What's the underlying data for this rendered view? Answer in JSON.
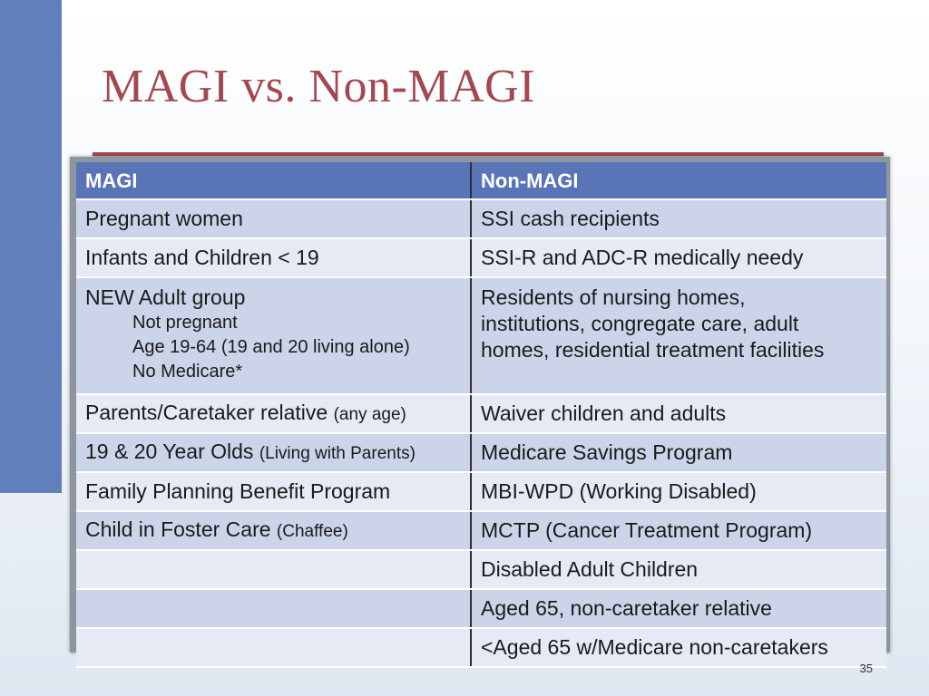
{
  "slide": {
    "title": "MAGI vs. Non-MAGI",
    "page_number": "35"
  },
  "table": {
    "headers": [
      "MAGI",
      "Non-MAGI"
    ],
    "rows": [
      {
        "magi": "Pregnant women",
        "non_magi": "SSI  cash recipients"
      },
      {
        "magi": "Infants and Children < 19",
        "non_magi": "SSI-R and ADC-R medically needy"
      },
      {
        "magi": "NEW Adult group",
        "magi_sub": [
          "Not pregnant",
          "Age 19-64 (19 and 20 living alone)",
          "No Medicare*"
        ],
        "non_magi_lines": [
          "Residents of nursing homes,",
          "institutions, congregate care, adult",
          "homes, residential treatment facilities"
        ]
      },
      {
        "magi": "Parents/Caretaker relative",
        "magi_note": "(any age)",
        "non_magi": "Waiver children and adults"
      },
      {
        "magi": "19 & 20 Year Olds",
        "magi_note": "(Living with Parents)",
        "non_magi": "Medicare Savings Program"
      },
      {
        "magi": "Family Planning Benefit Program",
        "non_magi": "MBI-WPD (Working Disabled)"
      },
      {
        "magi": "Child in Foster Care",
        "magi_note": "(Chaffee)",
        "non_magi": "MCTP (Cancer Treatment Program)"
      },
      {
        "magi": "",
        "non_magi": "Disabled Adult Children"
      },
      {
        "magi": "",
        "non_magi": "Aged 65, non-caretaker relative"
      },
      {
        "magi": "",
        "non_magi": "<Aged 65 w/Medicare non-caretakers"
      }
    ]
  },
  "colors": {
    "title": "#a3484f",
    "side_bar": "#5f7fbd",
    "header_bg": "#5a74b8",
    "row_odd": "#ccd4e9",
    "row_even": "#e6eaf4"
  }
}
